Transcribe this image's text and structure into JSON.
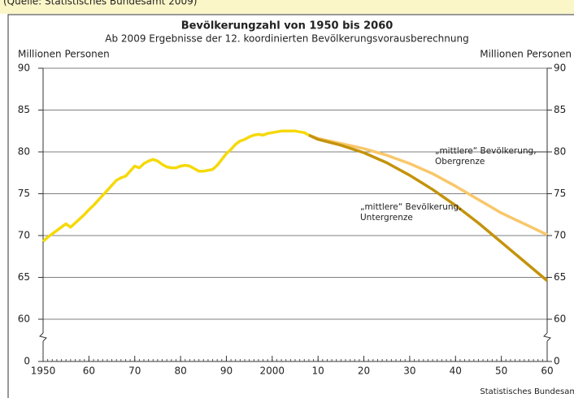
{
  "source_top": "(Quelle: Statistisches Bundesamt 2009)",
  "chart_data": {
    "type": "line",
    "title": "Bevölkerungzahl von 1950 bis 2060",
    "subtitle": "Ab 2009 Ergebnisse der 12. koordinierten Bevölkerungsvorausberechnung",
    "ylabel": "Millionen Personen",
    "y2label": "Millionen Personen",
    "footer": "Statistisches Bundesamt",
    "xlim": [
      1950,
      2060
    ],
    "xticks": [
      {
        "value": 1950,
        "label": "1950"
      },
      {
        "value": 1960,
        "label": "60"
      },
      {
        "value": 1970,
        "label": "70"
      },
      {
        "value": 1980,
        "label": "80"
      },
      {
        "value": 1990,
        "label": "90"
      },
      {
        "value": 2000,
        "label": "2000"
      },
      {
        "value": 2010,
        "label": "10"
      },
      {
        "value": 2020,
        "label": "20"
      },
      {
        "value": 2030,
        "label": "30"
      },
      {
        "value": 2040,
        "label": "40"
      },
      {
        "value": 2050,
        "label": "50"
      },
      {
        "value": 2060,
        "label": "60"
      }
    ],
    "xminor_step": 1,
    "ylim": [
      0,
      90
    ],
    "yticks": [
      0,
      60,
      65,
      70,
      75,
      80,
      85,
      90
    ],
    "y_break": [
      0,
      60
    ],
    "grid": true,
    "series": [
      {
        "color": "#f5d90a",
        "x": [
          1950,
          1951,
          1952,
          1953,
          1954,
          1955,
          1956,
          1957,
          1958,
          1959,
          1960,
          1961,
          1962,
          1963,
          1964,
          1965,
          1966,
          1967,
          1968,
          1969,
          1970,
          1971,
          1972,
          1973,
          1974,
          1975,
          1976,
          1977,
          1978,
          1979,
          1980,
          1981,
          1982,
          1983,
          1984,
          1985,
          1986,
          1987,
          1988,
          1989,
          1990,
          1991,
          1992,
          1993,
          1994,
          1995,
          1996,
          1997,
          1998,
          1999,
          2000,
          2001,
          2002,
          2003,
          2004,
          2005,
          2006,
          2007,
          2008
        ],
        "values": [
          69.3,
          69.8,
          70.2,
          70.6,
          71.0,
          71.4,
          71.0,
          71.5,
          72.0,
          72.5,
          73.1,
          73.6,
          74.2,
          74.8,
          75.4,
          76.0,
          76.6,
          76.9,
          77.1,
          77.7,
          78.3,
          78.1,
          78.6,
          78.9,
          79.1,
          78.9,
          78.5,
          78.2,
          78.1,
          78.1,
          78.3,
          78.4,
          78.3,
          78.0,
          77.7,
          77.7,
          77.8,
          77.9,
          78.4,
          79.1,
          79.8,
          80.3,
          80.9,
          81.3,
          81.5,
          81.8,
          82.0,
          82.1,
          82.0,
          82.2,
          82.3,
          82.4,
          82.5,
          82.5,
          82.5,
          82.5,
          82.4,
          82.3,
          82.0
        ]
      },
      {
        "color": "#f9c76a",
        "x": [
          2008,
          2010,
          2015,
          2020,
          2025,
          2030,
          2035,
          2040,
          2045,
          2050,
          2055,
          2060
        ],
        "values": [
          82.0,
          81.6,
          81.0,
          80.4,
          79.6,
          78.6,
          77.4,
          75.9,
          74.3,
          72.7,
          71.4,
          70.1
        ]
      },
      {
        "color": "#c4930c",
        "x": [
          2008,
          2010,
          2015,
          2020,
          2025,
          2030,
          2035,
          2040,
          2045,
          2050,
          2055,
          2060
        ],
        "values": [
          82.0,
          81.5,
          80.8,
          79.9,
          78.7,
          77.2,
          75.5,
          73.6,
          71.5,
          69.2,
          66.9,
          64.6
        ]
      }
    ],
    "annotations": [
      {
        "lines": [
          "„mittlere“ Bevölkerung,",
          "Obergrenze"
        ]
      },
      {
        "lines": [
          "„mittlere“ Bevölkerung,",
          "Untergrenze"
        ]
      }
    ]
  }
}
